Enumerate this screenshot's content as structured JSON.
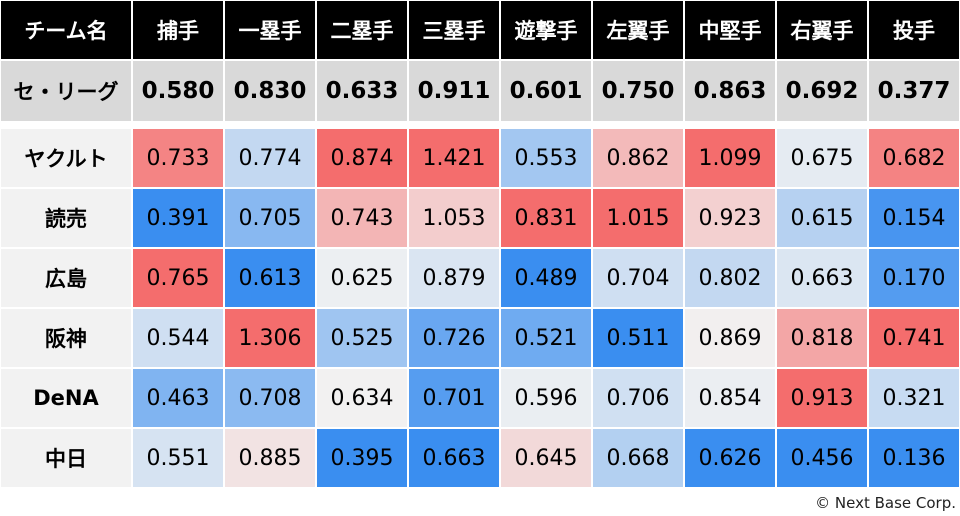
{
  "chart_data": {
    "type": "heatmap",
    "corner_label": "チーム名",
    "columns": [
      "捕手",
      "一塁手",
      "二塁手",
      "三塁手",
      "遊撃手",
      "左翼手",
      "中堅手",
      "右翼手",
      "投手"
    ],
    "league": {
      "name": "セ・リーグ",
      "values": [
        "0.580",
        "0.830",
        "0.633",
        "0.911",
        "0.601",
        "0.750",
        "0.863",
        "0.692",
        "0.377"
      ]
    },
    "rows": [
      {
        "team": "ヤクルト",
        "values": [
          "0.733",
          "0.774",
          "0.874",
          "1.421",
          "0.553",
          "0.862",
          "1.099",
          "0.675",
          "0.682"
        ]
      },
      {
        "team": "読売",
        "values": [
          "0.391",
          "0.705",
          "0.743",
          "1.053",
          "0.831",
          "1.015",
          "0.923",
          "0.615",
          "0.154"
        ]
      },
      {
        "team": "広島",
        "values": [
          "0.765",
          "0.613",
          "0.625",
          "0.879",
          "0.489",
          "0.704",
          "0.802",
          "0.663",
          "0.170"
        ]
      },
      {
        "team": "阪神",
        "values": [
          "0.544",
          "1.306",
          "0.525",
          "0.726",
          "0.521",
          "0.511",
          "0.869",
          "0.818",
          "0.741"
        ]
      },
      {
        "team": "DeNA",
        "values": [
          "0.463",
          "0.708",
          "0.634",
          "0.701",
          "0.596",
          "0.706",
          "0.854",
          "0.913",
          "0.321"
        ]
      },
      {
        "team": "中日",
        "values": [
          "0.551",
          "0.885",
          "0.395",
          "0.663",
          "0.645",
          "0.668",
          "0.626",
          "0.456",
          "0.136"
        ]
      }
    ],
    "color_scale": {
      "low": "#3a8ef0",
      "mid": "#f2f2f2",
      "high": "#f46d6d"
    }
  },
  "credit": "© Next Base Corp."
}
